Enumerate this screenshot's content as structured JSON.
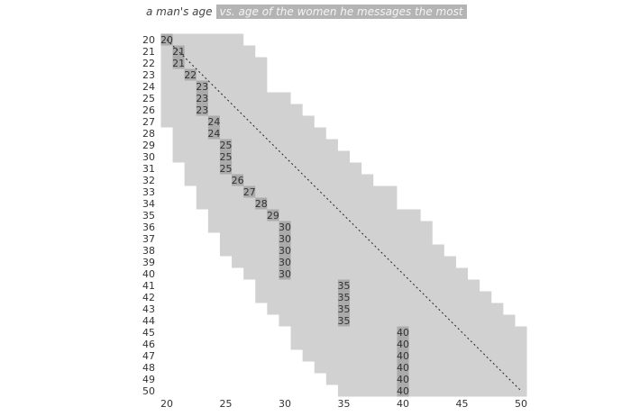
{
  "chart_data": {
    "type": "range-highlight",
    "title": "a man's age",
    "subtitle": "vs. age of the women he messages the most",
    "xlim": [
      20,
      50
    ],
    "xticks": [
      20,
      25,
      30,
      35,
      40,
      45,
      50
    ],
    "ylim": [
      20,
      50
    ],
    "range_color": "#d1d1d1",
    "highlight_color": "#ababab",
    "rows": [
      {
        "age": 20,
        "min": 20,
        "max": 26,
        "most": 20
      },
      {
        "age": 21,
        "min": 20,
        "max": 27,
        "most": 21
      },
      {
        "age": 22,
        "min": 20,
        "max": 28,
        "most": 21
      },
      {
        "age": 23,
        "min": 20,
        "max": 28,
        "most": 22
      },
      {
        "age": 24,
        "min": 20,
        "max": 28,
        "most": 23
      },
      {
        "age": 25,
        "min": 20,
        "max": 30,
        "most": 23
      },
      {
        "age": 26,
        "min": 20,
        "max": 31,
        "most": 23
      },
      {
        "age": 27,
        "min": 20,
        "max": 32,
        "most": 24
      },
      {
        "age": 28,
        "min": 21,
        "max": 33,
        "most": 24
      },
      {
        "age": 29,
        "min": 21,
        "max": 34,
        "most": 25
      },
      {
        "age": 30,
        "min": 21,
        "max": 35,
        "most": 25
      },
      {
        "age": 31,
        "min": 22,
        "max": 36,
        "most": 25
      },
      {
        "age": 32,
        "min": 22,
        "max": 37,
        "most": 26
      },
      {
        "age": 33,
        "min": 23,
        "max": 39,
        "most": 27
      },
      {
        "age": 34,
        "min": 23,
        "max": 39,
        "most": 28
      },
      {
        "age": 35,
        "min": 24,
        "max": 41,
        "most": 29
      },
      {
        "age": 36,
        "min": 24,
        "max": 42,
        "most": 30
      },
      {
        "age": 37,
        "min": 25,
        "max": 42,
        "most": 30
      },
      {
        "age": 38,
        "min": 25,
        "max": 43,
        "most": 30
      },
      {
        "age": 39,
        "min": 26,
        "max": 44,
        "most": 30
      },
      {
        "age": 40,
        "min": 27,
        "max": 45,
        "most": 30
      },
      {
        "age": 41,
        "min": 28,
        "max": 46,
        "most": 35
      },
      {
        "age": 42,
        "min": 28,
        "max": 47,
        "most": 35
      },
      {
        "age": 43,
        "min": 29,
        "max": 48,
        "most": 35
      },
      {
        "age": 44,
        "min": 30,
        "max": 49,
        "most": 35
      },
      {
        "age": 45,
        "min": 31,
        "max": 50,
        "most": 40
      },
      {
        "age": 46,
        "min": 31,
        "max": 50,
        "most": 40
      },
      {
        "age": 47,
        "min": 32,
        "max": 50,
        "most": 40
      },
      {
        "age": 48,
        "min": 33,
        "max": 50,
        "most": 40
      },
      {
        "age": 49,
        "min": 34,
        "max": 50,
        "most": 40
      },
      {
        "age": 50,
        "min": 35,
        "max": 50,
        "most": 40
      }
    ]
  }
}
